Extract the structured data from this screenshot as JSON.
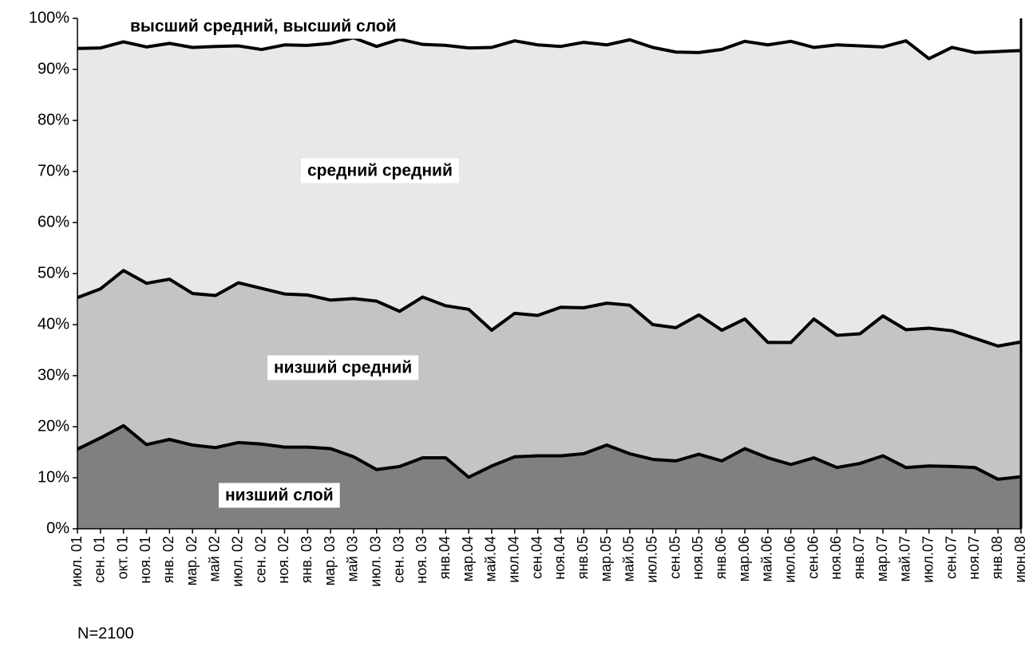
{
  "chart_data": {
    "type": "stacked_area",
    "categories": [
      "июл. 01",
      "сен. 01",
      "окт. 01",
      "ноя. 01",
      "янв. 02",
      "мар. 02",
      "май 02",
      "июл. 02",
      "сен. 02",
      "ноя. 02",
      "янв. 03",
      "мар. 03",
      "май 03",
      "июл. 03",
      "сен. 03",
      "ноя. 03",
      "янв.04",
      "мар.04",
      "май.04",
      "июл.04",
      "сен.04",
      "ноя.04",
      "янв.05",
      "мар.05",
      "май.05",
      "июл.05",
      "сен.05",
      "ноя.05",
      "янв.06",
      "мар.06",
      "май.06",
      "июл.06",
      "сен.06",
      "ноя.06",
      "янв.07",
      "мар.07",
      "май.07",
      "июл.07",
      "сен.07",
      "ноя.07",
      "янв.08",
      "июн.08"
    ],
    "series": [
      {
        "name": "низший слой",
        "color": "#808080",
        "values": [
          15.6,
          17.8,
          20.2,
          16.5,
          17.5,
          16.4,
          15.9,
          16.9,
          16.6,
          16.0,
          16.0,
          15.7,
          14.1,
          11.6,
          12.2,
          13.9,
          13.9,
          10.1,
          12.3,
          14.1,
          14.3,
          14.3,
          14.7,
          16.4,
          14.7,
          13.6,
          13.3,
          14.6,
          13.3,
          15.7,
          13.9,
          12.6,
          13.9,
          12.0,
          12.8,
          14.3,
          12.0,
          12.3,
          12.2,
          12.0,
          9.7,
          10.2
        ]
      },
      {
        "name": "низший средний",
        "color": "#c4c4c4",
        "values": [
          29.7,
          29.2,
          30.4,
          31.6,
          31.4,
          29.7,
          29.8,
          31.3,
          30.5,
          30.0,
          29.8,
          29.1,
          31.0,
          33.0,
          30.4,
          31.5,
          29.8,
          32.9,
          26.6,
          28.1,
          27.5,
          29.1,
          28.6,
          27.8,
          29.1,
          26.4,
          26.1,
          27.3,
          25.6,
          25.4,
          22.6,
          23.9,
          27.2,
          25.9,
          25.4,
          27.4,
          27.0,
          27.0,
          26.6,
          25.3,
          26.1,
          26.4
        ]
      },
      {
        "name": "средний средний",
        "color": "#e8e8e8",
        "values": [
          48.8,
          47.2,
          44.8,
          46.3,
          46.2,
          48.2,
          48.8,
          46.4,
          46.8,
          48.8,
          48.9,
          50.3,
          51.1,
          49.9,
          53.3,
          49.5,
          51.0,
          51.2,
          55.4,
          53.4,
          53.0,
          51.1,
          52.0,
          50.6,
          52.0,
          54.3,
          54.0,
          51.4,
          55.0,
          54.4,
          58.3,
          59.0,
          53.2,
          56.9,
          56.4,
          52.7,
          56.6,
          52.8,
          55.5,
          56.0,
          57.7,
          57.1
        ]
      },
      {
        "name": "высший средний, высший слой",
        "color": "#ffffff",
        "values": [
          5.9,
          5.8,
          4.6,
          5.6,
          4.9,
          5.7,
          5.5,
          5.4,
          6.1,
          5.2,
          5.3,
          4.9,
          3.8,
          5.5,
          4.1,
          5.1,
          5.3,
          5.8,
          5.7,
          4.4,
          5.2,
          5.5,
          4.7,
          5.2,
          4.2,
          5.7,
          6.6,
          6.7,
          6.1,
          4.5,
          5.2,
          4.5,
          5.7,
          5.2,
          5.4,
          5.6,
          4.4,
          7.9,
          5.7,
          6.7,
          6.5,
          6.3
        ]
      }
    ],
    "ylim": [
      0,
      100
    ],
    "yticks": [
      {
        "value": 0,
        "label": "0%"
      },
      {
        "value": 10,
        "label": "10%"
      },
      {
        "value": 20,
        "label": "20%"
      },
      {
        "value": 30,
        "label": "30%"
      },
      {
        "value": 40,
        "label": "40%"
      },
      {
        "value": 50,
        "label": "50%"
      },
      {
        "value": 60,
        "label": "60%"
      },
      {
        "value": 70,
        "label": "70%"
      },
      {
        "value": 80,
        "label": "80%"
      },
      {
        "value": 90,
        "label": "90%"
      },
      {
        "value": 100,
        "label": "100%"
      }
    ],
    "note": "N=2100"
  }
}
